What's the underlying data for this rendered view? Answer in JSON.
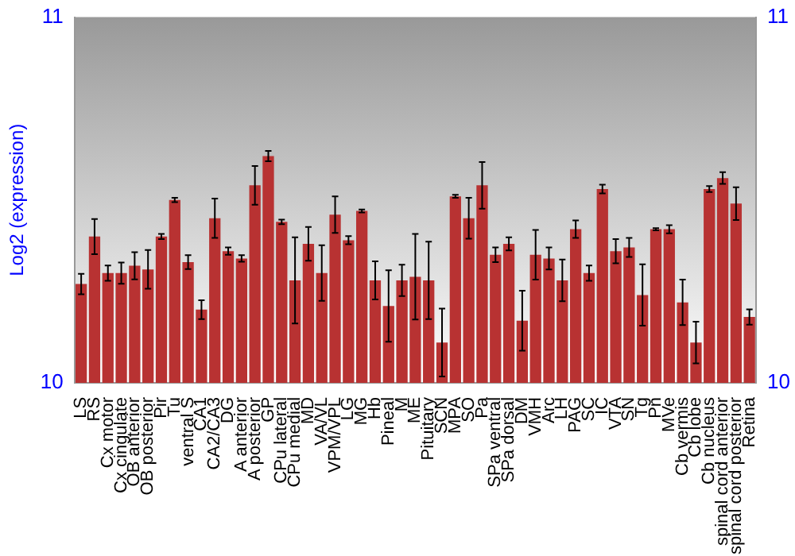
{
  "chart_data": {
    "type": "bar",
    "ylabel": "Log2 (expression)",
    "categories": [
      "LS",
      "RS",
      "Cx motor",
      "Cx cingulate",
      "OB anterior",
      "OB posterior",
      "Pir",
      "Tu",
      "ventral S",
      "CA1",
      "CA2/CA3",
      "DG",
      "A anterior",
      "A posterior",
      "GP",
      "CPu lateral",
      "CPu medial",
      "MD",
      "VA/VL",
      "VPM/VPL",
      "LG",
      "MG",
      "Hb",
      "Pineal",
      "M",
      "ME",
      "Pituitary",
      "SCN",
      "MPA",
      "SO",
      "Pa",
      "SPa ventral",
      "SPa dorsal",
      "DM",
      "VMH",
      "Arc",
      "LH",
      "PAG",
      "SC",
      "IC",
      "VTA",
      "SN",
      "Tg",
      "Pn",
      "MVe",
      "Cb vermis",
      "Cb lobe",
      "Cb nucleus",
      "spinal cord anterior",
      "spinal cord posterior",
      "Retina"
    ],
    "values": [
      10.27,
      10.4,
      10.3,
      10.3,
      10.32,
      10.31,
      10.4,
      10.5,
      10.33,
      10.2,
      10.45,
      10.36,
      10.34,
      10.54,
      10.62,
      10.44,
      10.28,
      10.38,
      10.3,
      10.46,
      10.39,
      10.47,
      10.28,
      10.21,
      10.28,
      10.29,
      10.28,
      10.11,
      10.51,
      10.45,
      10.54,
      10.35,
      10.38,
      10.17,
      10.35,
      10.34,
      10.28,
      10.42,
      10.3,
      10.53,
      10.36,
      10.37,
      10.24,
      10.42,
      10.42,
      10.22,
      10.11,
      10.53,
      10.56,
      10.49,
      10.18
    ],
    "errors": [
      0.028,
      0.048,
      0.021,
      0.029,
      0.037,
      0.053,
      0.007,
      0.006,
      0.019,
      0.026,
      0.054,
      0.01,
      0.009,
      0.053,
      0.014,
      0.006,
      0.118,
      0.046,
      0.076,
      0.05,
      0.011,
      0.004,
      0.052,
      0.098,
      0.043,
      0.117,
      0.106,
      0.093,
      0.004,
      0.056,
      0.064,
      0.02,
      0.018,
      0.082,
      0.068,
      0.03,
      0.057,
      0.024,
      0.021,
      0.012,
      0.033,
      0.026,
      0.084,
      0.003,
      0.011,
      0.062,
      0.057,
      0.008,
      0.016,
      0.045,
      0.021
    ],
    "color": "#b83232",
    "ylim": [
      10,
      11
    ],
    "yticks": [
      10,
      11
    ],
    "y2lim": [
      10,
      11
    ],
    "y2ticks": [
      10,
      11
    ],
    "grid": false,
    "legend": false
  }
}
